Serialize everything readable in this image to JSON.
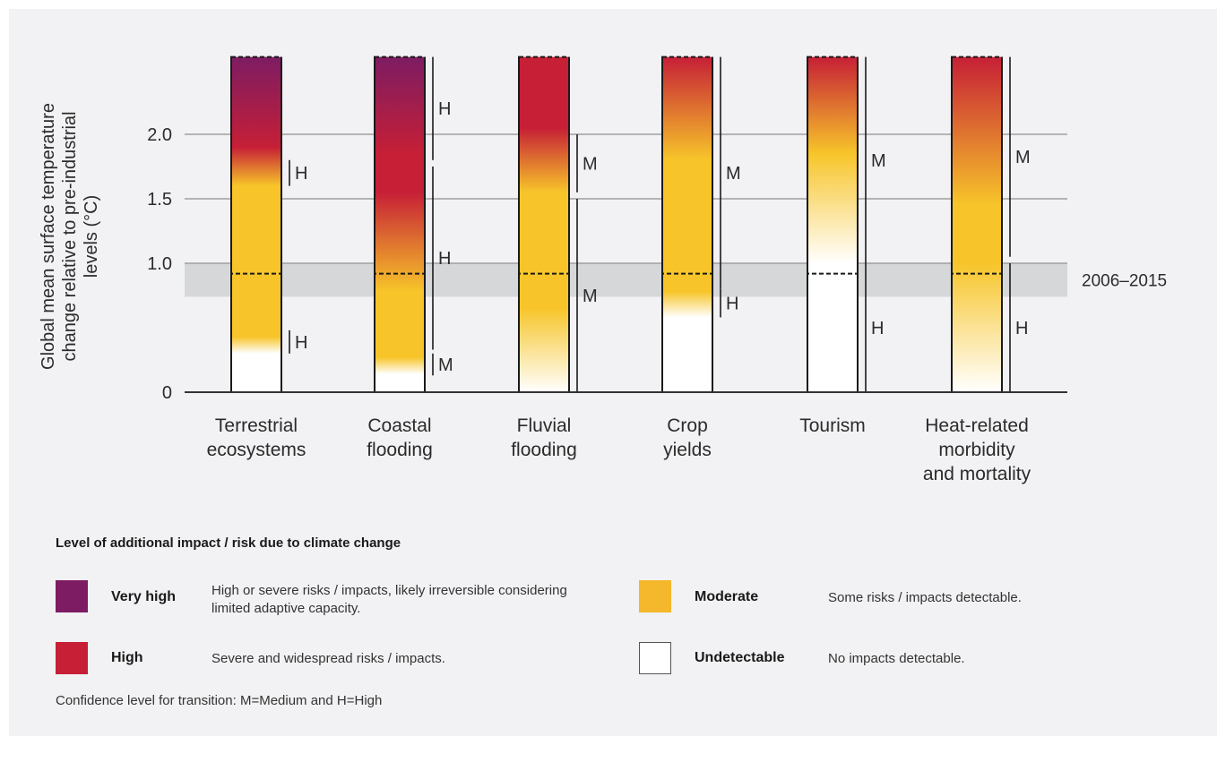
{
  "chart_data": {
    "type": "bar",
    "ylabel_lines": [
      "Global mean surface temperature",
      "change relative to pre-industrial",
      "levels (°C)"
    ],
    "y_ticks": [
      "0",
      "1.0",
      "1.5",
      "2.0"
    ],
    "y_tick_values": [
      0,
      1.0,
      1.5,
      2.0
    ],
    "ylim": [
      0,
      2.6
    ],
    "grid": "horizontal lines at 1.0, 1.5 and 2.0",
    "reference_band": {
      "label": "2006–2015",
      "from": 0.74,
      "to": 1.0
    },
    "categories": [
      {
        "label_lines": [
          "Terrestrial",
          "ecosystems"
        ],
        "stops": [
          {
            "t": 0.0,
            "level": "Undetectable"
          },
          {
            "t": 0.3,
            "level": "Undetectable"
          },
          {
            "t": 0.43,
            "level": "Moderate"
          },
          {
            "t": 1.6,
            "level": "Moderate"
          },
          {
            "t": 1.9,
            "level": "High"
          },
          {
            "t": 2.6,
            "level": "Very high"
          }
        ],
        "transitions": [
          {
            "from": 0.3,
            "to": 0.48,
            "confidence": "H"
          },
          {
            "from": 1.6,
            "to": 1.8,
            "confidence": "H"
          }
        ]
      },
      {
        "label_lines": [
          "Coastal",
          "flooding"
        ],
        "stops": [
          {
            "t": 0.0,
            "level": "Undetectable"
          },
          {
            "t": 0.14,
            "level": "Undetectable"
          },
          {
            "t": 0.27,
            "level": "Moderate"
          },
          {
            "t": 0.78,
            "level": "Moderate"
          },
          {
            "t": 1.55,
            "level": "High"
          },
          {
            "t": 1.85,
            "level": "High"
          },
          {
            "t": 2.6,
            "level": "Very high"
          }
        ],
        "transitions": [
          {
            "from": 0.13,
            "to": 0.3,
            "confidence": "M"
          },
          {
            "from": 0.33,
            "to": 1.75,
            "confidence": "H"
          },
          {
            "from": 1.8,
            "to": 2.6,
            "confidence": "H"
          }
        ]
      },
      {
        "label_lines": [
          "Fluvial",
          "flooding"
        ],
        "stops": [
          {
            "t": 0.0,
            "level": "Undetectable"
          },
          {
            "t": 0.65,
            "level": "Moderate"
          },
          {
            "t": 1.55,
            "level": "Moderate"
          },
          {
            "t": 2.05,
            "level": "High"
          },
          {
            "t": 2.6,
            "level": "High"
          }
        ],
        "transitions": [
          {
            "from": 0.0,
            "to": 1.5,
            "confidence": "M"
          },
          {
            "from": 1.55,
            "to": 2.0,
            "confidence": "M"
          }
        ]
      },
      {
        "label_lines": [
          "Crop",
          "yields"
        ],
        "stops": [
          {
            "t": 0.0,
            "level": "Undetectable"
          },
          {
            "t": 0.58,
            "level": "Undetectable"
          },
          {
            "t": 0.78,
            "level": "Moderate"
          },
          {
            "t": 1.8,
            "level": "Moderate"
          },
          {
            "t": 2.6,
            "level": "High"
          }
        ],
        "transitions": [
          {
            "from": 0.58,
            "to": 0.8,
            "confidence": "H"
          },
          {
            "from": 0.8,
            "to": 2.6,
            "confidence": "M"
          }
        ]
      },
      {
        "label_lines": [
          "Tourism"
        ],
        "stops": [
          {
            "t": 0.0,
            "level": "Undetectable"
          },
          {
            "t": 1.0,
            "level": "Undetectable"
          },
          {
            "t": 1.85,
            "level": "Moderate"
          },
          {
            "t": 2.6,
            "level": "High"
          }
        ],
        "transitions": [
          {
            "from": 0.0,
            "to": 1.0,
            "confidence": "H"
          },
          {
            "from": 1.0,
            "to": 2.6,
            "confidence": "M"
          }
        ]
      },
      {
        "label_lines": [
          "Heat-related",
          "morbidity",
          "and mortality"
        ],
        "stops": [
          {
            "t": 0.0,
            "level": "Undetectable"
          },
          {
            "t": 1.0,
            "level": "Moderate"
          },
          {
            "t": 1.45,
            "level": "Moderate"
          },
          {
            "t": 2.6,
            "level": "High"
          }
        ],
        "transitions": [
          {
            "from": 0.0,
            "to": 1.0,
            "confidence": "H"
          },
          {
            "from": 1.05,
            "to": 2.6,
            "confidence": "M"
          }
        ]
      }
    ]
  },
  "legend": {
    "title": "Level of additional impact / risk due to climate change",
    "items": [
      {
        "label": "Very high",
        "description": "High or severe risks / impacts, likely irreversible considering limited adaptive capacity.",
        "color": "#7d1c63"
      },
      {
        "label": "High",
        "description": "Severe and widespread risks / impacts.",
        "color": "#c61f36"
      },
      {
        "label": "Moderate",
        "description": "Some risks / impacts detectable.",
        "color": "#f5b72b"
      },
      {
        "label": "Undetectable",
        "description": "No impacts detectable.",
        "color": "#ffffff"
      }
    ],
    "footnote": "Confidence level for transition: M=Medium and H=High"
  },
  "colors": {
    "Undetectable": "#ffffff",
    "Moderate": "#f7c52a",
    "High": "#c61f36",
    "Very high": "#7d1c63",
    "grid": "#a0a0a0",
    "band": "#d6d7d8"
  }
}
